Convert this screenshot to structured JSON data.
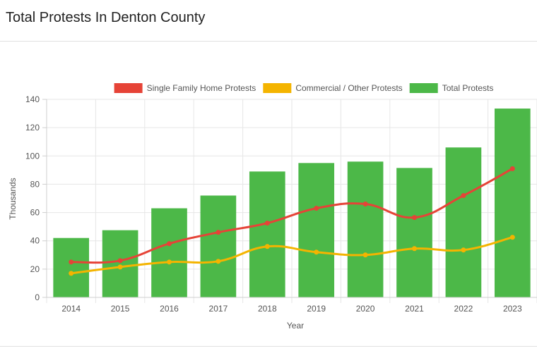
{
  "page": {
    "title": "Total Protests In Denton County"
  },
  "chart_data": {
    "type": "bar",
    "categories": [
      "2014",
      "2015",
      "2016",
      "2017",
      "2018",
      "2019",
      "2020",
      "2021",
      "2022",
      "2023"
    ],
    "series": [
      {
        "name": "Single Family Home Protests",
        "type": "line",
        "color": "#e64337",
        "values": [
          25,
          26,
          38,
          46,
          52.5,
          63,
          66,
          56.5,
          72,
          91
        ]
      },
      {
        "name": "Commercial / Other Protests",
        "type": "line",
        "color": "#f4b400",
        "values": [
          17,
          21.5,
          25,
          25.5,
          36,
          32,
          30,
          34.5,
          33.5,
          42.5
        ]
      },
      {
        "name": "Total Protests",
        "type": "bar",
        "color": "#4cb848",
        "values": [
          42,
          47.5,
          63,
          72,
          89,
          95,
          96,
          91.5,
          106,
          133.5
        ]
      }
    ],
    "xlabel": "Year",
    "ylabel": "Thousands",
    "ylim": [
      0,
      140
    ],
    "yticks": [
      "0",
      "20",
      "40",
      "60",
      "80",
      "100",
      "120",
      "140"
    ],
    "grid": true,
    "legend": "top-center"
  }
}
